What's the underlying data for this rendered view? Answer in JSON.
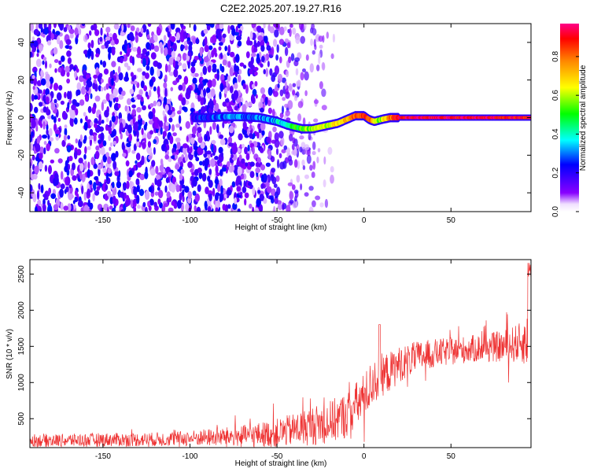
{
  "title": "C2E2.2025.207.19.27.R16",
  "chart_data": [
    {
      "type": "heatmap",
      "xlabel": "Height of straight line (km)",
      "ylabel": "Frequency (Hz)",
      "xlim": [
        -192,
        96
      ],
      "ylim": [
        -50,
        50
      ],
      "x_ticks": [
        -150,
        -100,
        -50,
        0,
        50
      ],
      "y_ticks": [
        -40,
        -20,
        0,
        20,
        40
      ],
      "colorbar": {
        "label": "Normalized spectral amplitude",
        "range": [
          0,
          0.97
        ],
        "ticks": [
          0.0,
          0.2,
          0.4,
          0.6,
          0.8
        ]
      },
      "ridge_frequency": {
        "x": [
          -98,
          -90,
          -80,
          -70,
          -60,
          -50,
          -44,
          -40,
          -35,
          -30,
          -25,
          -20,
          -15,
          -10,
          -5,
          0,
          3,
          6,
          10,
          15,
          20,
          30,
          50,
          70,
          96
        ],
        "y": [
          0,
          0,
          0.5,
          0.5,
          0,
          -2,
          -4,
          -5,
          -6,
          -6,
          -5,
          -4,
          -3,
          -1,
          1,
          1,
          -1,
          -2,
          -1,
          0,
          0,
          0,
          0,
          0,
          0
        ],
        "amplitude": [
          0.2,
          0.25,
          0.3,
          0.3,
          0.3,
          0.35,
          0.45,
          0.5,
          0.55,
          0.6,
          0.6,
          0.65,
          0.7,
          0.75,
          0.85,
          0.9,
          0.9,
          0.6,
          0.6,
          0.8,
          0.95,
          0.95,
          0.95,
          0.95,
          0.9
        ]
      },
      "background_noise": {
        "x_range": [
          -192,
          -20
        ],
        "amplitude": [
          0.0,
          0.15
        ]
      }
    },
    {
      "type": "line",
      "xlabel": "Height of straight line (km)",
      "ylabel": "SNR (10 * v/v)",
      "xlim": [
        -192,
        96
      ],
      "ylim": [
        100,
        2700
      ],
      "x_ticks": [
        -150,
        -100,
        -50,
        0,
        50
      ],
      "y_ticks": [
        500,
        1000,
        1500,
        2000,
        2500
      ],
      "series": [
        {
          "color": "#ee3333",
          "x": [
            -192,
            -170,
            -150,
            -130,
            -110,
            -100,
            -90,
            -80,
            -70,
            -60,
            -50,
            -40,
            -30,
            -20,
            -10,
            0,
            5,
            10,
            15,
            20,
            25,
            30,
            40,
            50,
            60,
            70,
            80,
            90,
            96
          ],
          "y": [
            200,
            200,
            210,
            210,
            220,
            230,
            240,
            250,
            260,
            280,
            300,
            350,
            400,
            450,
            550,
            800,
            1000,
            1100,
            1150,
            1250,
            1300,
            1350,
            1400,
            1430,
            1460,
            1480,
            1500,
            1550,
            1600
          ],
          "noise_amplitude": [
            90,
            90,
            95,
            95,
            100,
            110,
            120,
            130,
            150,
            170,
            200,
            230,
            270,
            300,
            320,
            330,
            320,
            300,
            280,
            250,
            230,
            220,
            200,
            190,
            190,
            200,
            220,
            280,
            400
          ]
        }
      ]
    }
  ]
}
